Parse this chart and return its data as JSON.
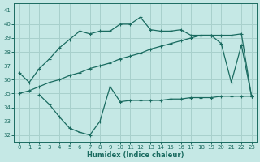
{
  "xlabel": "Humidex (Indice chaleur)",
  "xlim": [
    -0.5,
    23.5
  ],
  "ylim": [
    31.5,
    41.5
  ],
  "xticks": [
    0,
    1,
    2,
    3,
    4,
    5,
    6,
    7,
    8,
    9,
    10,
    11,
    12,
    13,
    14,
    15,
    16,
    17,
    18,
    19,
    20,
    21,
    22,
    23
  ],
  "yticks": [
    32,
    33,
    34,
    35,
    36,
    37,
    38,
    39,
    40,
    41
  ],
  "background_color": "#c5e8e5",
  "grid_color": "#a8d0cc",
  "line_color": "#1a6b60",
  "line1_x": [
    0,
    1,
    2,
    3,
    4,
    5,
    6,
    7,
    8,
    9,
    10,
    11,
    12,
    13,
    14,
    15,
    16,
    17,
    18,
    19,
    20,
    21,
    22,
    23
  ],
  "line1_y": [
    36.5,
    35.8,
    36.8,
    37.5,
    38.3,
    38.9,
    39.5,
    39.3,
    39.5,
    39.5,
    40.0,
    40.0,
    40.5,
    39.6,
    39.5,
    39.5,
    39.6,
    39.2,
    39.2,
    39.2,
    38.6,
    35.8,
    38.5,
    34.8
  ],
  "line2_x": [
    0,
    1,
    2,
    3,
    4,
    5,
    6,
    7,
    8,
    9,
    10,
    11,
    12,
    13,
    14,
    15,
    16,
    17,
    18,
    19,
    20,
    21,
    22,
    23
  ],
  "line2_y": [
    35.0,
    35.2,
    35.5,
    35.8,
    36.0,
    36.3,
    36.5,
    36.8,
    37.0,
    37.2,
    37.5,
    37.7,
    37.9,
    38.2,
    38.4,
    38.6,
    38.8,
    39.0,
    39.2,
    39.2,
    39.2,
    39.2,
    39.3,
    34.8
  ],
  "line3_x": [
    2,
    3,
    4,
    5,
    6,
    7,
    8,
    9,
    10,
    11,
    12,
    13,
    14,
    15,
    16,
    17,
    18,
    19,
    20,
    21,
    22,
    23
  ],
  "line3_y": [
    34.9,
    34.2,
    33.3,
    32.5,
    32.2,
    32.0,
    33.0,
    35.5,
    34.4,
    34.5,
    34.5,
    34.5,
    34.5,
    34.6,
    34.6,
    34.7,
    34.7,
    34.7,
    34.8,
    34.8,
    34.8,
    34.8
  ]
}
